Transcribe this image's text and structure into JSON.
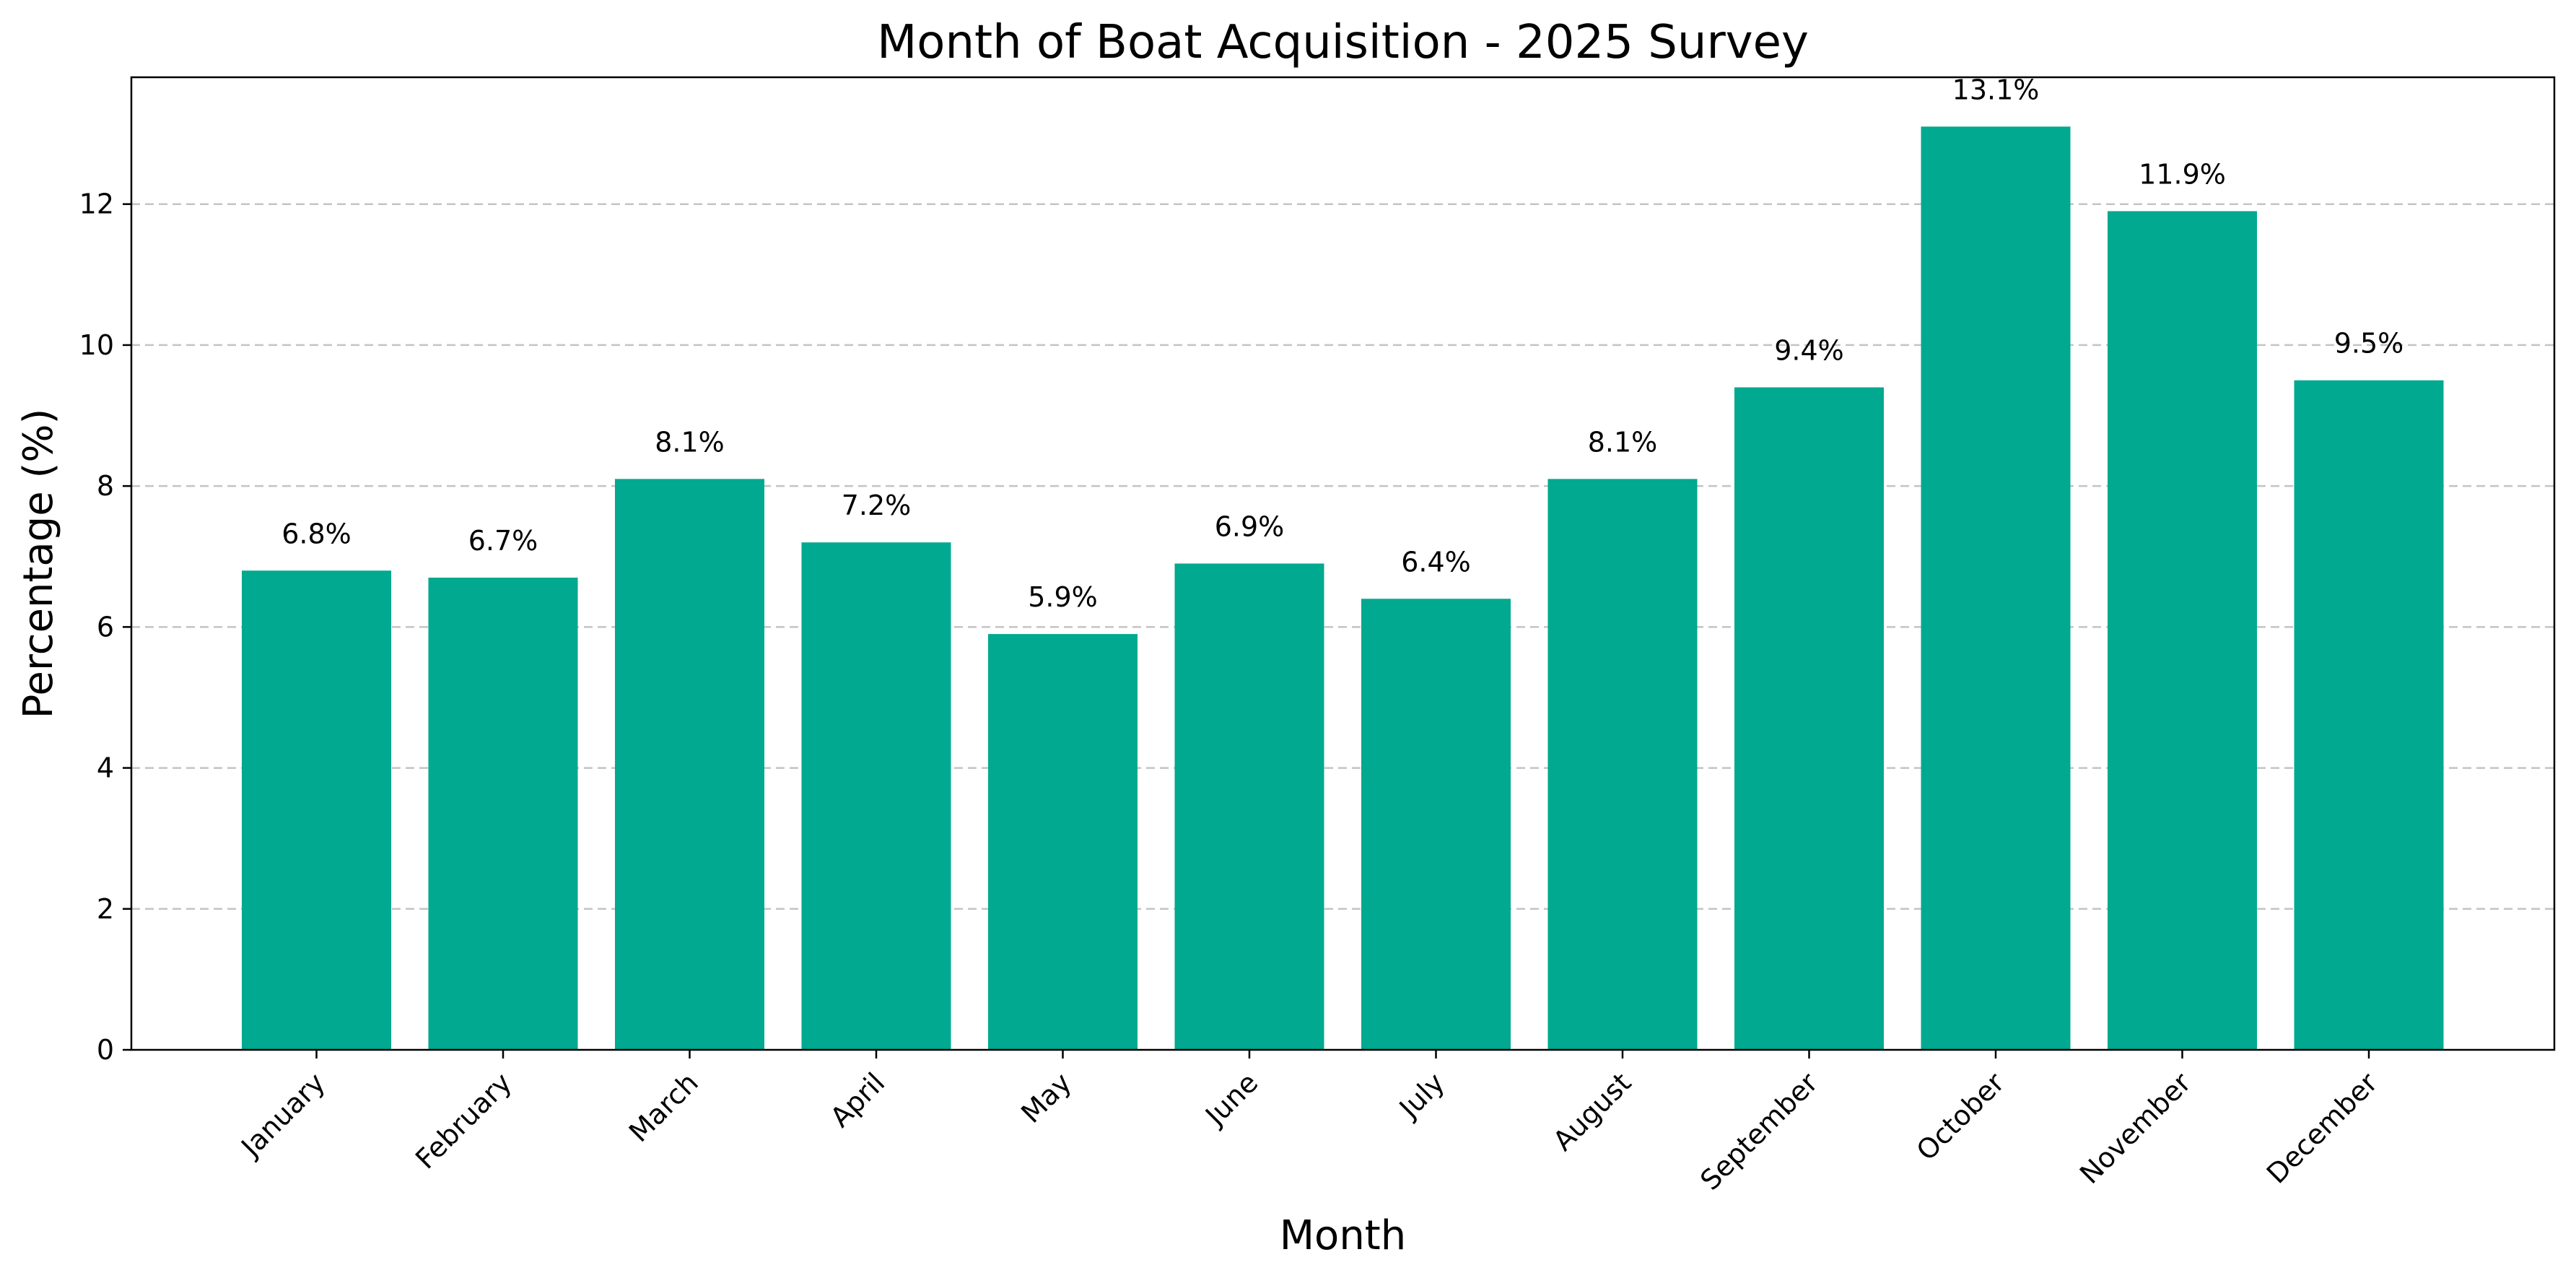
{
  "chart_data": {
    "type": "bar",
    "title": "Month of Boat Acquisition - 2025 Survey",
    "xlabel": "Month",
    "ylabel": "Percentage (%)",
    "categories": [
      "January",
      "February",
      "March",
      "April",
      "May",
      "June",
      "July",
      "August",
      "September",
      "October",
      "November",
      "December"
    ],
    "values": [
      6.8,
      6.7,
      8.1,
      7.2,
      5.9,
      6.9,
      6.4,
      8.1,
      9.4,
      13.1,
      11.9,
      9.5
    ],
    "value_labels": [
      "6.8%",
      "6.7%",
      "8.1%",
      "7.2%",
      "5.9%",
      "6.9%",
      "6.4%",
      "8.1%",
      "9.4%",
      "13.1%",
      "11.9%",
      "9.5%"
    ],
    "yticks": [
      0,
      2,
      4,
      6,
      8,
      10,
      12
    ],
    "ylim": [
      0,
      13.8
    ],
    "grid": "horizontal dashed",
    "bar_color": "#00A98F"
  }
}
